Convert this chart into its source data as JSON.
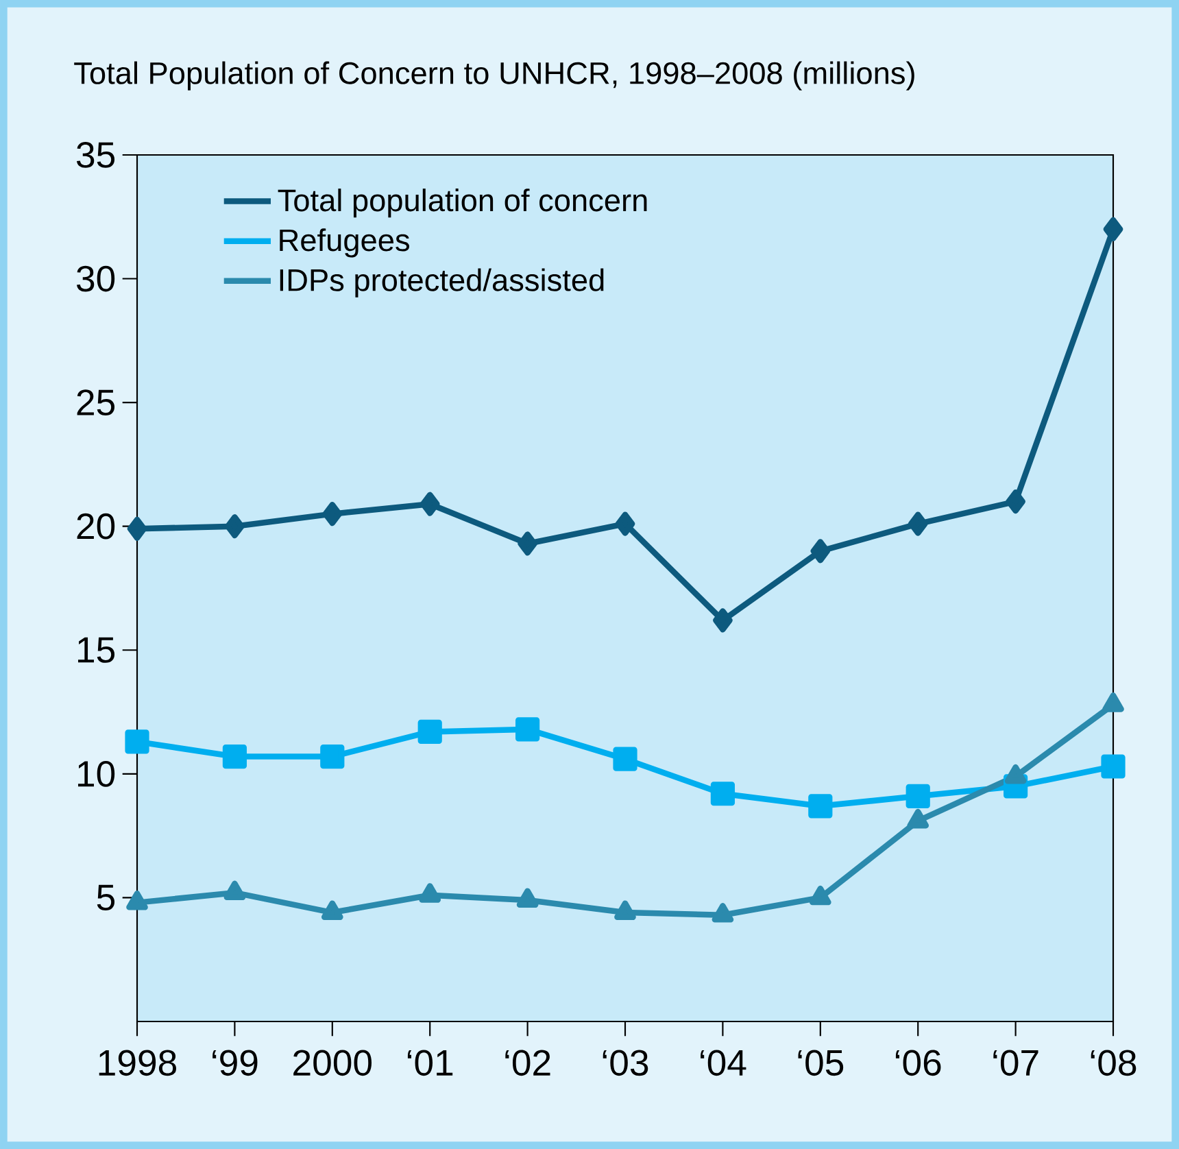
{
  "chart_data": {
    "type": "line",
    "title": "Total Population of Concern to UNHCR, 1998–2008 (millions)",
    "categories": [
      "1998",
      "‘99",
      "2000",
      "‘01",
      "‘02",
      "‘03",
      "‘04",
      "‘05",
      "‘06",
      "‘07",
      "‘08"
    ],
    "series": [
      {
        "name": "Total population of concern",
        "color": "#0d5a7e",
        "marker": "diamond",
        "values": [
          19.9,
          20.0,
          20.5,
          20.9,
          19.3,
          20.1,
          16.2,
          19.0,
          20.1,
          21.0,
          32.0
        ]
      },
      {
        "name": "Refugees",
        "color": "#00aeef",
        "marker": "square",
        "values": [
          11.3,
          10.7,
          10.7,
          11.7,
          11.8,
          10.6,
          9.2,
          8.7,
          9.1,
          9.5,
          10.3
        ]
      },
      {
        "name": "IDPs protected/assisted",
        "color": "#2b8aad",
        "marker": "triangle",
        "values": [
          4.8,
          5.2,
          4.4,
          5.1,
          4.9,
          4.4,
          4.3,
          5.0,
          8.1,
          9.9,
          12.8
        ]
      }
    ],
    "ylim": [
      0,
      35
    ],
    "yticks": [
      5,
      10,
      15,
      20,
      25,
      30,
      35
    ],
    "grid": false,
    "legend": "top left",
    "line_style": "solid"
  }
}
